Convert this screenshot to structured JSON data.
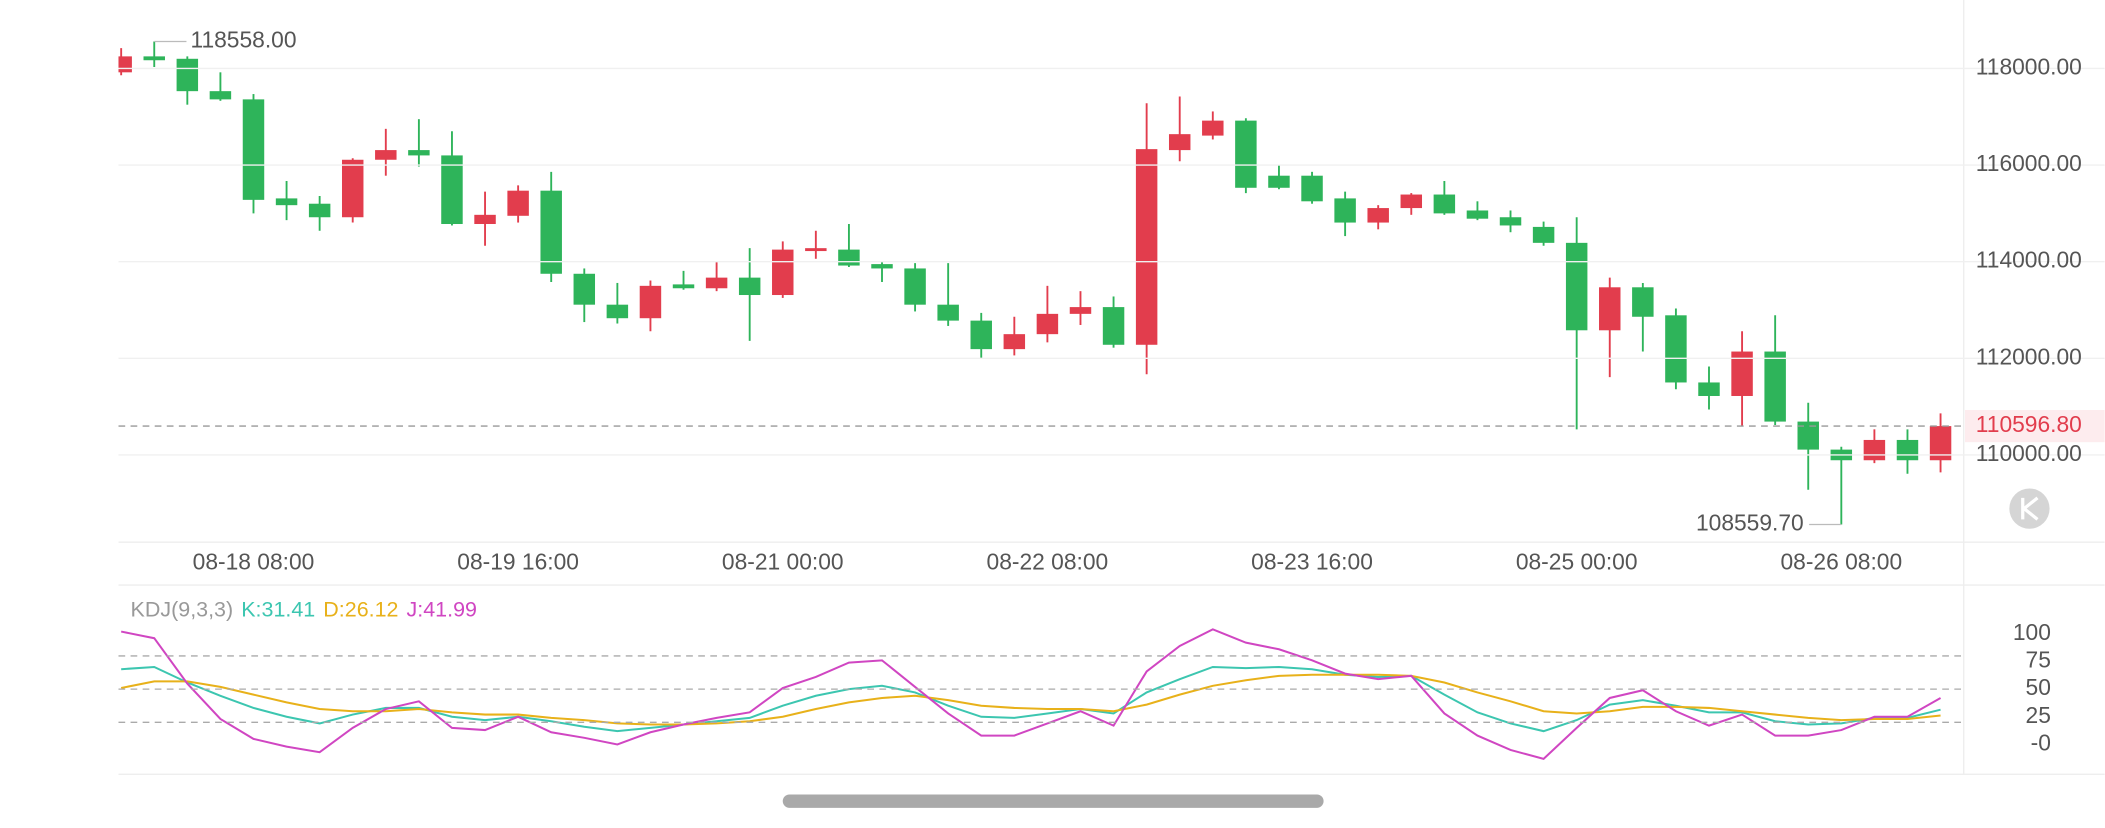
{
  "chart_data": [
    {
      "type": "candlestick",
      "categories": [
        null,
        null,
        null,
        null,
        "08-18 08:00",
        null,
        null,
        null,
        null,
        null,
        null,
        null,
        "08-19 16:00",
        null,
        null,
        null,
        null,
        null,
        null,
        null,
        "08-21 00:00",
        null,
        null,
        null,
        null,
        null,
        null,
        null,
        "08-22 08:00",
        null,
        null,
        null,
        null,
        null,
        null,
        null,
        "08-23 16:00",
        null,
        null,
        null,
        null,
        null,
        null,
        null,
        "08-25 00:00",
        null,
        null,
        null,
        null,
        null,
        null,
        null,
        "08-26 08:00",
        null,
        null,
        null
      ],
      "open": [
        117920,
        118250,
        118200,
        117530,
        117360,
        115310,
        115200,
        114920,
        116110,
        116310,
        116200,
        114780,
        114950,
        115470,
        113750,
        113110,
        112830,
        113530,
        113450,
        113670,
        113310,
        114220,
        114250,
        113950,
        113860,
        113110,
        112780,
        112190,
        112500,
        112920,
        113060,
        112280,
        116310,
        116610,
        116920,
        115780,
        115780,
        115310,
        114810,
        115110,
        115390,
        115060,
        114920,
        114720,
        114390,
        112580,
        113470,
        112890,
        111500,
        111220,
        112140,
        110690,
        110110,
        109890,
        110310,
        109890
      ],
      "high": [
        118420,
        118558,
        118250,
        117920,
        117470,
        115670,
        115360,
        116140,
        116750,
        116950,
        116700,
        115450,
        115580,
        115860,
        113860,
        113560,
        113610,
        113810,
        114000,
        114280,
        114420,
        114640,
        114780,
        114000,
        113970,
        113970,
        112940,
        112860,
        113500,
        113390,
        113280,
        117280,
        117420,
        117110,
        116970,
        116000,
        115860,
        115450,
        115170,
        115420,
        115670,
        115250,
        115060,
        114830,
        114920,
        113670,
        113560,
        113030,
        111830,
        112560,
        112890,
        111080,
        110170,
        110530,
        110530,
        110860
      ],
      "low": [
        117860,
        118030,
        117250,
        117330,
        115000,
        114860,
        114640,
        114810,
        115780,
        115970,
        114750,
        114330,
        114810,
        113580,
        112750,
        112720,
        112560,
        113420,
        113390,
        112360,
        113250,
        114060,
        113890,
        113580,
        112970,
        112670,
        112000,
        112060,
        112330,
        112690,
        112220,
        111670,
        116080,
        116530,
        115420,
        115500,
        115200,
        114530,
        114670,
        114970,
        114970,
        114860,
        114610,
        114330,
        110530,
        111610,
        112140,
        111360,
        110940,
        110610,
        110620,
        109280,
        108559.7,
        109830,
        109610,
        109640
      ],
      "close": [
        118250,
        118170,
        117530,
        117360,
        115280,
        115170,
        114920,
        116110,
        116310,
        116200,
        114780,
        114970,
        115470,
        113750,
        113110,
        112830,
        113500,
        113450,
        113670,
        113310,
        114250,
        114280,
        113920,
        113860,
        113110,
        112780,
        112190,
        112500,
        112920,
        113060,
        112280,
        116330,
        116640,
        116920,
        115530,
        115530,
        115250,
        114810,
        115110,
        115390,
        115000,
        114890,
        114750,
        114390,
        112580,
        113470,
        112860,
        111500,
        111220,
        112140,
        110690,
        110110,
        109890,
        110310,
        109890,
        110596.8
      ],
      "up_color": "#e23d4d",
      "down_color": "#2eb45a",
      "ylim": [
        108222,
        119417
      ],
      "yticks": [
        {
          "value": 110000,
          "label": "110000.00"
        },
        {
          "value": 112000,
          "label": "112000.00"
        },
        {
          "value": 114000,
          "label": "114000.00"
        },
        {
          "value": 116000,
          "label": "116000.00"
        },
        {
          "value": 118000,
          "label": "118000.00"
        }
      ],
      "grid": true,
      "last_price": {
        "value": 110596.8,
        "label": "110596.80"
      },
      "high_label": {
        "value": 118558,
        "label": "118558.00"
      },
      "low_label": {
        "value": 108559.7,
        "label": "108559.70"
      }
    },
    {
      "type": "line",
      "indicator": "KDJ(9,3,3)",
      "series": [
        {
          "name": "K:31.41",
          "color": "#3cc6b0",
          "values": [
            68,
            70,
            56,
            44,
            33,
            25,
            19,
            27,
            33,
            33,
            25,
            22,
            25,
            21,
            16,
            12,
            15,
            18,
            21,
            24,
            35,
            44,
            50,
            53,
            47,
            35,
            25,
            24,
            28,
            32,
            28,
            47,
            59,
            70,
            69,
            70,
            68,
            63,
            61,
            62,
            45,
            29,
            19,
            12,
            22,
            36,
            40,
            35,
            29,
            29,
            21,
            18,
            19,
            24,
            24,
            31.41
          ]
        },
        {
          "name": "D:26.12",
          "color": "#e8b11a",
          "values": [
            51,
            57,
            57,
            52,
            45,
            38,
            32,
            30,
            30,
            32,
            29,
            27,
            27,
            24,
            22,
            19,
            18,
            18,
            19,
            21,
            25,
            32,
            38,
            42,
            44,
            40,
            35,
            33,
            32,
            32,
            30,
            36,
            45,
            53,
            58,
            62,
            63,
            63,
            63,
            62,
            56,
            47,
            39,
            30,
            28,
            30,
            34,
            34,
            33,
            30,
            27,
            24,
            22,
            23,
            23,
            26.12
          ]
        },
        {
          "name": "J:41.99",
          "color": "#d046c2",
          "values": [
            102,
            96,
            55,
            23,
            5,
            -2,
            -7,
            15,
            32,
            39,
            15,
            13,
            25,
            11,
            6,
            0,
            11,
            18,
            24,
            29,
            51,
            61,
            74,
            76,
            52,
            28,
            8,
            8,
            19,
            30,
            17,
            66,
            89,
            104,
            92,
            86,
            76,
            64,
            59,
            62,
            28,
            8,
            -5,
            -13,
            15,
            42,
            49,
            30,
            17,
            27,
            8,
            8,
            13,
            25,
            25,
            41.99
          ]
        }
      ],
      "ylim": [
        -27,
        144
      ],
      "yticks": [
        {
          "value": 0,
          "label": "-0"
        },
        25,
        50,
        75,
        100
      ],
      "levels": [
        20,
        50,
        80
      ]
    }
  ]
}
